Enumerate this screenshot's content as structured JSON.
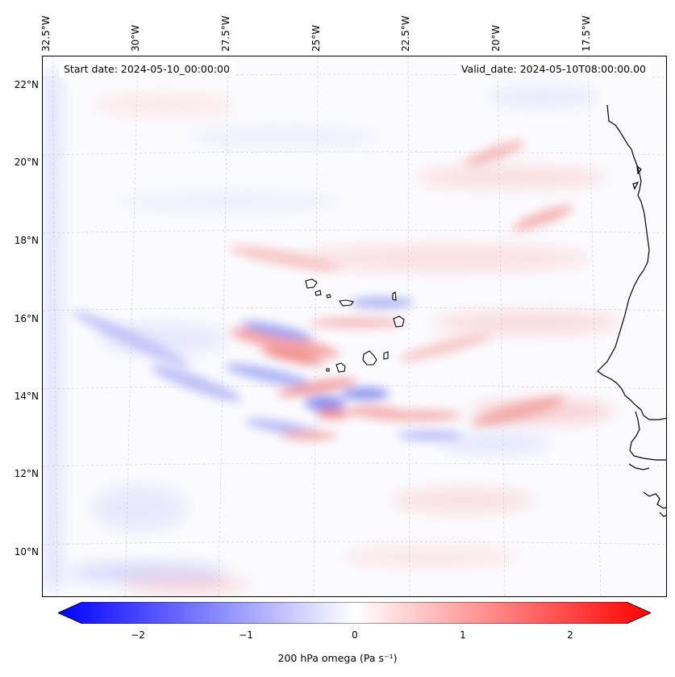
{
  "map": {
    "top_ticks": [
      "32.5°W",
      "30°W",
      "27.5°W",
      "25°W",
      "22.5°W",
      "20°W",
      "17.5°W"
    ],
    "left_ticks": [
      "22°N",
      "20°N",
      "18°N",
      "16°N",
      "14°N",
      "12°N",
      "10°N"
    ],
    "start_date": "Start date: 2024-05-10_00:00:00",
    "valid_date": "Valid_date: 2024-05-10T08:00:00.00",
    "field": "200 hPa omega",
    "units": "Pa s⁻¹"
  },
  "colorbar": {
    "ticks": [
      "−2",
      "−1",
      "0",
      "1",
      "2"
    ],
    "min": -2.5,
    "max": 2.5,
    "label": "200 hPa omega (Pa s⁻¹)",
    "colors": {
      "negative": "#0000ff",
      "zero": "#ffffff",
      "positive": "#ff0000"
    }
  }
}
